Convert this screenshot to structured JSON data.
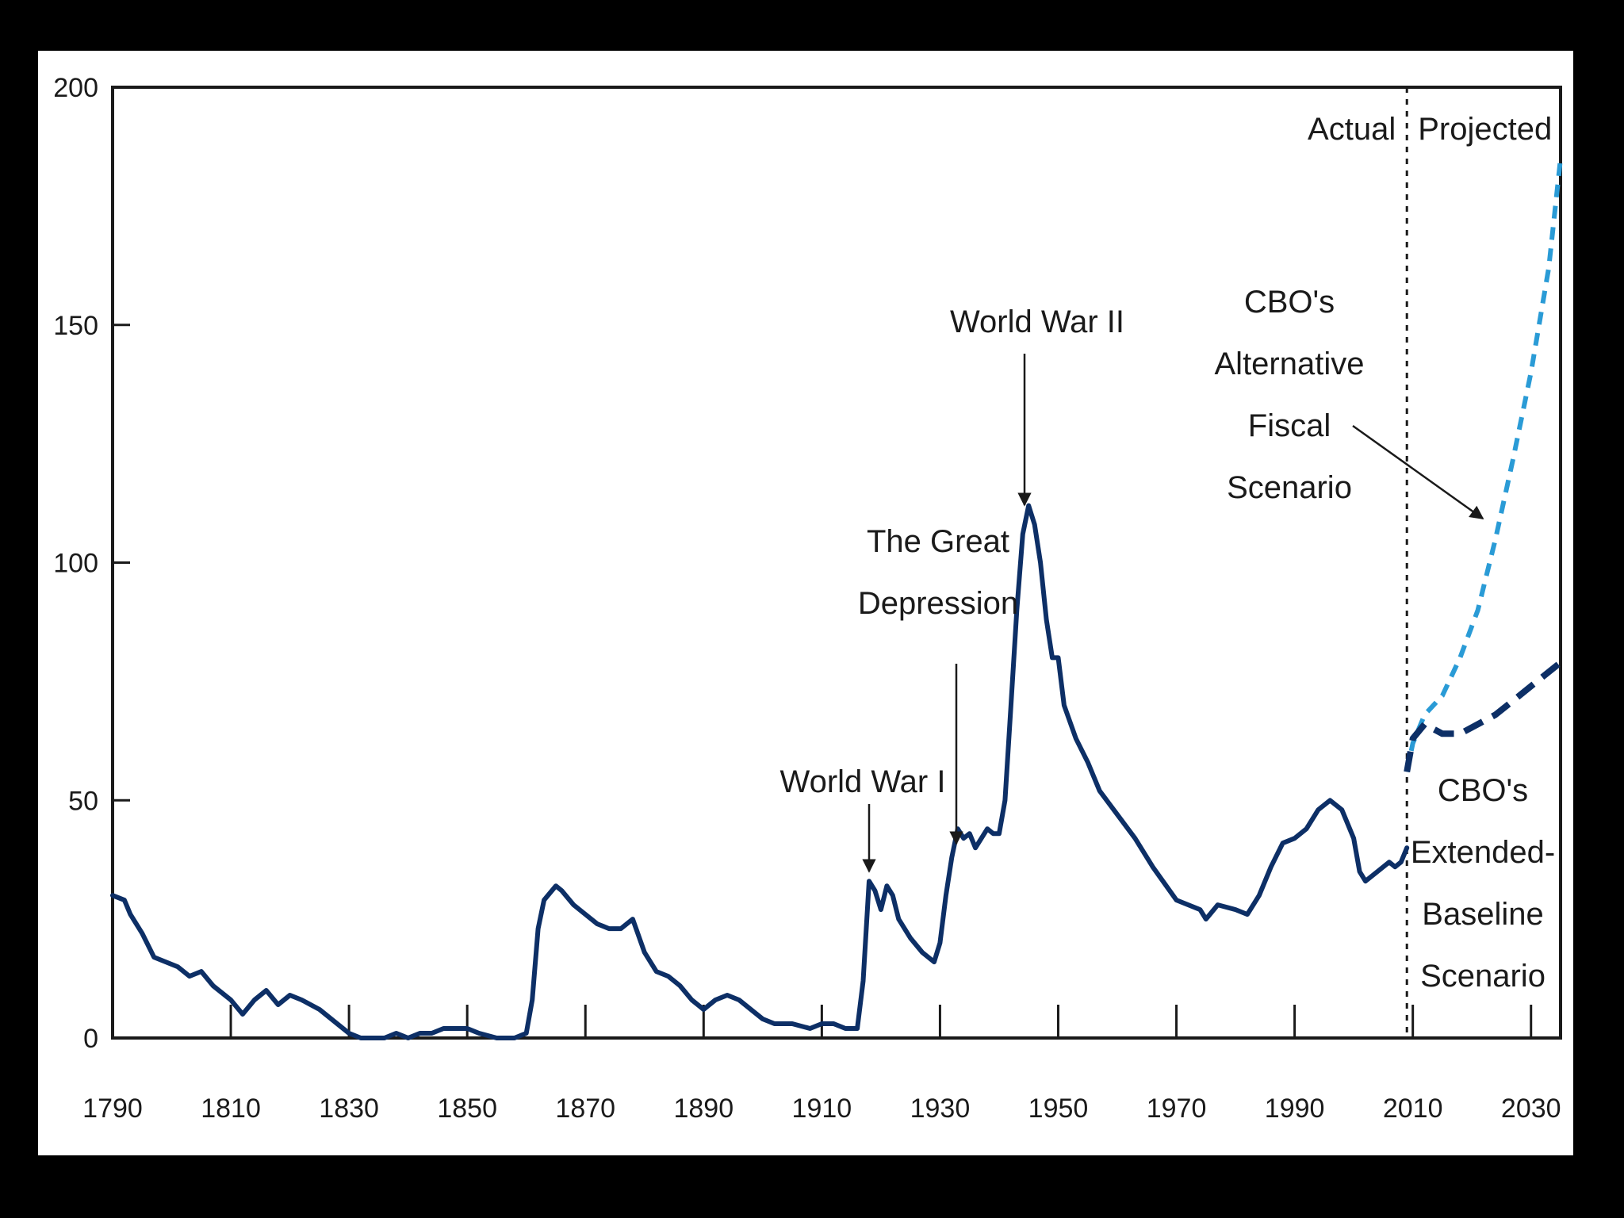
{
  "chart_data": {
    "type": "line",
    "title": "",
    "xlabel": "",
    "ylabel": "",
    "xlim": [
      1790,
      2035
    ],
    "ylim": [
      0,
      200
    ],
    "x_ticks": [
      1790,
      1810,
      1830,
      1850,
      1870,
      1890,
      1910,
      1930,
      1950,
      1970,
      1990,
      2010,
      2030
    ],
    "y_ticks": [
      0,
      50,
      100,
      150,
      200
    ],
    "grid": false,
    "legend": "none",
    "divider_x": 2009,
    "region_labels": {
      "left": "Actual",
      "right": "Projected"
    },
    "colors": {
      "actual": "#0d2f66",
      "alternative": "#2a9bd6",
      "extended_baseline": "#0d2f66",
      "text": "#1a1a1a"
    },
    "series": [
      {
        "style": "solid",
        "x": [
          1790,
          1792,
          1793,
          1795,
          1797,
          1799,
          1801,
          1803,
          1805,
          1807,
          1810,
          1812,
          1814,
          1816,
          1818,
          1820,
          1822,
          1825,
          1828,
          1830,
          1832,
          1834,
          1836,
          1838,
          1840,
          1842,
          1844,
          1846,
          1848,
          1850,
          1852,
          1855,
          1858,
          1860,
          1861,
          1862,
          1863,
          1865,
          1866,
          1868,
          1870,
          1872,
          1874,
          1876,
          1878,
          1880,
          1882,
          1884,
          1886,
          1888,
          1890,
          1892,
          1894,
          1896,
          1898,
          1900,
          1902,
          1905,
          1908,
          1910,
          1912,
          1914,
          1916,
          1917,
          1918,
          1919,
          1920,
          1921,
          1922,
          1923,
          1925,
          1927,
          1929,
          1930,
          1931,
          1932,
          1933,
          1934,
          1935,
          1936,
          1937,
          1938,
          1939,
          1940,
          1941,
          1942,
          1943,
          1944,
          1945,
          1946,
          1947,
          1948,
          1949,
          1950,
          1951,
          1953,
          1955,
          1957,
          1960,
          1963,
          1966,
          1970,
          1974,
          1975,
          1977,
          1980,
          1982,
          1984,
          1986,
          1988,
          1990,
          1992,
          1994,
          1996,
          1998,
          2000,
          2001,
          2002,
          2004,
          2006,
          2007,
          2008,
          2009
        ],
        "values": [
          30,
          29,
          26,
          22,
          17,
          16,
          15,
          13,
          14,
          11,
          8,
          5,
          8,
          10,
          7,
          9,
          8,
          6,
          3,
          1,
          0,
          0,
          0,
          1,
          0,
          1,
          1,
          2,
          2,
          2,
          1,
          0,
          0,
          1,
          8,
          23,
          29,
          32,
          31,
          28,
          26,
          24,
          23,
          23,
          25,
          18,
          14,
          13,
          11,
          8,
          6,
          8,
          9,
          8,
          6,
          4,
          3,
          3,
          2,
          3,
          3,
          2,
          2,
          12,
          33,
          31,
          27,
          32,
          30,
          25,
          21,
          18,
          16,
          20,
          30,
          38,
          44,
          42,
          43,
          40,
          42,
          44,
          43,
          43,
          50,
          70,
          90,
          106,
          112,
          108,
          100,
          88,
          80,
          80,
          70,
          63,
          58,
          52,
          47,
          42,
          36,
          29,
          27,
          25,
          28,
          27,
          26,
          30,
          36,
          41,
          42,
          44,
          48,
          50,
          48,
          42,
          35,
          33,
          35,
          37,
          36,
          37,
          40
        ]
      },
      {
        "style": "dashed",
        "x": [
          2009,
          2010,
          2012,
          2015,
          2018,
          2021,
          2024,
          2027,
          2030,
          2033,
          2035
        ],
        "values": [
          56,
          62,
          68,
          72,
          80,
          90,
          105,
          122,
          140,
          162,
          185
        ]
      },
      {
        "style": "dashed",
        "x": [
          2009,
          2010,
          2012,
          2015,
          2018,
          2021,
          2024,
          2027,
          2030,
          2033,
          2035
        ],
        "values": [
          56,
          63,
          66,
          64,
          64,
          66,
          68,
          71,
          74,
          77,
          79
        ]
      }
    ],
    "annotations": [
      {
        "lines": [
          "World War I"
        ],
        "x": 1918,
        "y": 33
      },
      {
        "lines": [
          "The Great",
          "Depression"
        ],
        "x": 1933,
        "y": 43
      },
      {
        "lines": [
          "World War II"
        ],
        "x": 1945,
        "y": 112
      },
      {
        "lines": [
          "CBO's",
          "Alternative",
          "Fiscal",
          "Scenario"
        ],
        "x": 2023,
        "y": 107
      },
      {
        "lines": [
          "CBO's",
          "Extended-",
          "Baseline",
          "Scenario"
        ],
        "x": 2023,
        "y": 70
      }
    ]
  }
}
